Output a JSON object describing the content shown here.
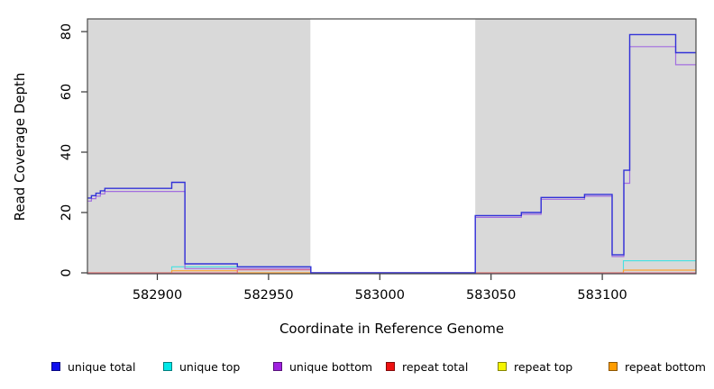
{
  "chart_data": {
    "type": "line",
    "subtype": "step-coverage-plot",
    "title": "",
    "x_label": "Coordinate in Reference Genome",
    "y_label": "Read Coverage Depth",
    "x_ticks": [
      582900,
      582950,
      583000,
      583050,
      583100
    ],
    "y_ticks": [
      0,
      20,
      40,
      60,
      80
    ],
    "x_range": [
      582868.6,
      583142.1
    ],
    "y_range": [
      0,
      84.2
    ],
    "grid": "off",
    "legend_position": "bottom",
    "plot_background": "#ffffff",
    "shaded_regions": [
      {
        "from": 582868.6,
        "to": 582968.8,
        "color": "#d9d9d9"
      },
      {
        "from": 583042.9,
        "to": 583142.1,
        "color": "#d9d9d9"
      }
    ],
    "zero_overlap_segments": {
      "note": "cyan 'unique top' and yellow 'repeat top' overlap at depth 0, blending to pale green",
      "color": "#8fd8a0",
      "segments": [
        {
          "from": 582868.6,
          "to": 582906.5
        },
        {
          "from": 583042.9,
          "to": 583109.5
        }
      ]
    },
    "series": [
      {
        "name": "repeat top",
        "color": "#f0e400",
        "width": 1.1,
        "breakpoints": [
          [
            582868.6,
            0
          ]
        ]
      },
      {
        "name": "unique top",
        "color": "#46e2e2",
        "width": 1.1,
        "breakpoints": [
          [
            582868.6,
            0
          ],
          [
            582906.5,
            2
          ],
          [
            582969,
            0
          ],
          [
            583109.5,
            4
          ]
        ]
      },
      {
        "name": "repeat bottom",
        "color": "#ffa230",
        "width": 1.2,
        "breakpoints": [
          [
            582868.6,
            0
          ],
          [
            582906.5,
            0.7
          ],
          [
            582936,
            0
          ],
          [
            583109.5,
            0.9
          ]
        ]
      },
      {
        "name": "repeat total",
        "color": "#e06888",
        "width": 1.1,
        "breakpoints": [
          [
            582868.6,
            0
          ],
          [
            582936,
            1
          ],
          [
            582969,
            0
          ]
        ]
      },
      {
        "name": "unique bottom",
        "color": "#a26ee0",
        "width": 1.2,
        "breakpoints": [
          [
            582868.6,
            23.8
          ],
          [
            582870.4,
            24.6
          ],
          [
            582872.4,
            25.4
          ],
          [
            582874.4,
            26.2
          ],
          [
            582876.4,
            27
          ],
          [
            582912.4,
            1.4
          ],
          [
            582969,
            0
          ],
          [
            583042.9,
            18.4
          ],
          [
            583063.6,
            19.4
          ],
          [
            583072.5,
            24.4
          ],
          [
            583092,
            25.4
          ],
          [
            583104.4,
            5.4
          ],
          [
            583109.7,
            29.7
          ],
          [
            583112.3,
            75
          ],
          [
            583133,
            69
          ]
        ]
      },
      {
        "name": "unique total",
        "color": "#3232d8",
        "width": 1.4,
        "breakpoints": [
          [
            582868.6,
            24.8
          ],
          [
            582870.4,
            25.6
          ],
          [
            582872.4,
            26.4
          ],
          [
            582874.4,
            27.2
          ],
          [
            582876.4,
            28
          ],
          [
            582906.5,
            30
          ],
          [
            582912.4,
            3
          ],
          [
            582936,
            2
          ],
          [
            582969,
            0
          ],
          [
            583042.9,
            19
          ],
          [
            583063.6,
            20
          ],
          [
            583072.5,
            25
          ],
          [
            583092,
            26
          ],
          [
            583104.4,
            6
          ],
          [
            583109.7,
            34
          ],
          [
            583112.3,
            79
          ],
          [
            583133,
            73
          ]
        ]
      }
    ],
    "legend": [
      {
        "label": "unique total",
        "color": "#0d0dee"
      },
      {
        "label": "unique top",
        "color": "#00e8e8"
      },
      {
        "label": "unique bottom",
        "color": "#a021e0"
      },
      {
        "label": "repeat total",
        "color": "#ee1111"
      },
      {
        "label": "repeat top",
        "color": "#f5f500"
      },
      {
        "label": "repeat bottom",
        "color": "#ff9d00"
      }
    ]
  }
}
